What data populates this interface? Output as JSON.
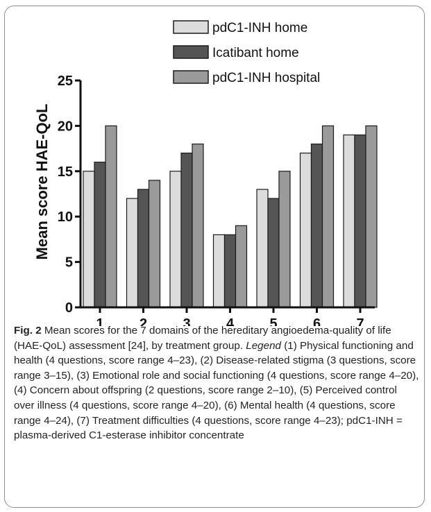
{
  "chart_data": {
    "type": "bar",
    "categories": [
      "1",
      "2",
      "3",
      "4",
      "5",
      "6",
      "7"
    ],
    "series": [
      {
        "name": "pdC1-INH home",
        "values": [
          15,
          12,
          15,
          8,
          13,
          17,
          19
        ]
      },
      {
        "name": "Icatibant home",
        "values": [
          16,
          13,
          17,
          8,
          12,
          18,
          19
        ]
      },
      {
        "name": "pdC1-INH hospital",
        "values": [
          20,
          14,
          18,
          9,
          15,
          20,
          20
        ]
      }
    ],
    "ylabel": "Mean score HAE-QoL",
    "xlabel": "",
    "ylim": [
      0,
      25
    ],
    "yticks": [
      0,
      5,
      10,
      15,
      20,
      25
    ],
    "grid": false,
    "legend_position": "top",
    "colors": [
      "#dcdcdc",
      "#555555",
      "#9a9a9a"
    ]
  },
  "caption": {
    "label": "Fig. 2",
    "text_part1": " Mean scores for the 7 domains of the hereditary angioedema-quality of life (HAE-QoL) assessment [24], by treatment group. ",
    "legend_word": "Legend",
    "text_part2": " (1) Physical functioning and health (4 questions, score range 4–23), (2) Disease-related stigma (3 questions, score range 3–15), (3) Emotional role and social functioning (4 questions, score range 4–20), (4) Concern about offspring (2 questions, score range 2–10), (5) Perceived control over illness (4 questions, score range 4–20), (6) Mental health (4 questions, score range 4–24), (7) Treatment difficulties (4 questions, score range 4–23); pdC1-INH = plasma-derived C1-esterase inhibitor concentrate"
  }
}
